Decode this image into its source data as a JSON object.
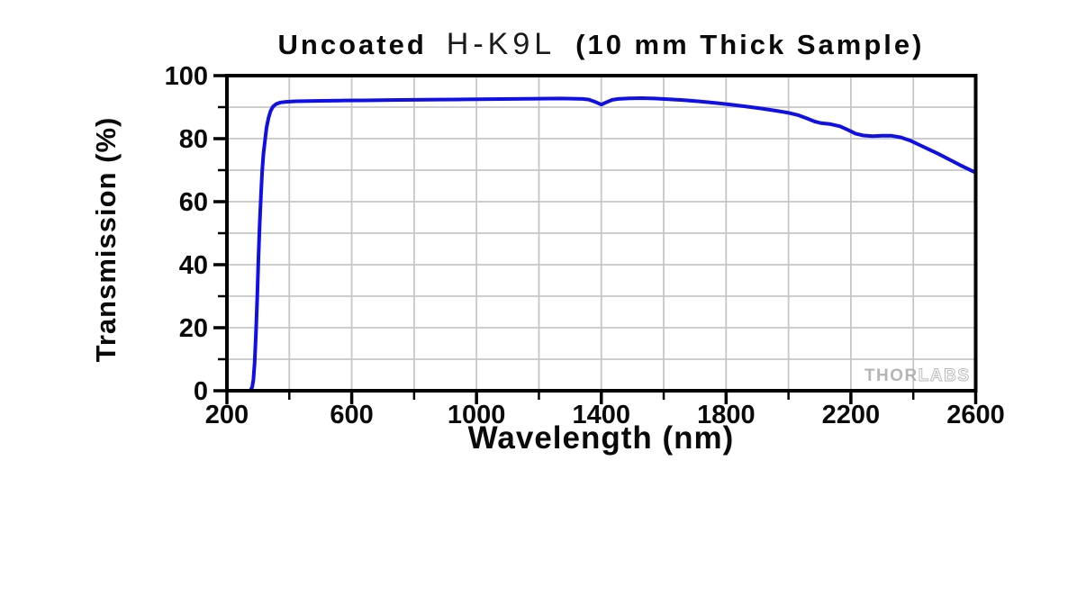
{
  "figure": {
    "title": {
      "prefix": "Uncoated",
      "glass": "H-K9L",
      "suffix": "(10 mm Thick Sample)"
    },
    "watermark": {
      "part1": "THOR",
      "part2": "LABS"
    }
  },
  "chart_data": {
    "type": "line",
    "title": "Uncoated H-K9L (10 mm Thick Sample)",
    "xlabel": "Wavelength (nm)",
    "ylabel": "Transmission (%)",
    "xlim": [
      200,
      2600
    ],
    "ylim": [
      0,
      100
    ],
    "x_major_ticks": [
      200,
      600,
      1000,
      1400,
      1800,
      2200,
      2600
    ],
    "x_minor_ticks": [
      400,
      800,
      1200,
      1600,
      2000,
      2400
    ],
    "y_major_ticks": [
      0,
      20,
      40,
      60,
      80,
      100
    ],
    "y_minor_ticks": [
      10,
      30,
      50,
      70,
      90
    ],
    "grid": {
      "visible": true,
      "x_values": [
        400,
        600,
        800,
        1000,
        1200,
        1400,
        1600,
        1800,
        2000,
        2200,
        2400
      ],
      "y_values": [
        10,
        20,
        30,
        40,
        50,
        60,
        70,
        80,
        90
      ]
    },
    "legend": "none",
    "colors": {
      "axis": "#000000",
      "grid": "#c6c6c6",
      "watermark": "#b5b5b5",
      "background": "#ffffff"
    },
    "series": [
      {
        "name": "Transmission",
        "color": "#0f0fe6",
        "points": [
          [
            200,
            0
          ],
          [
            250,
            0
          ],
          [
            268,
            0
          ],
          [
            276,
            0.2
          ],
          [
            281,
            1.2
          ],
          [
            285,
            3.5
          ],
          [
            289,
            9
          ],
          [
            293,
            18
          ],
          [
            297,
            29
          ],
          [
            301,
            42
          ],
          [
            305,
            53
          ],
          [
            309,
            62
          ],
          [
            313,
            69.5
          ],
          [
            317,
            75
          ],
          [
            322,
            79.5
          ],
          [
            327,
            83.5
          ],
          [
            333,
            86.5
          ],
          [
            340,
            88.8
          ],
          [
            348,
            90.2
          ],
          [
            358,
            91
          ],
          [
            372,
            91.5
          ],
          [
            390,
            91.7
          ],
          [
            420,
            91.85
          ],
          [
            460,
            91.95
          ],
          [
            500,
            92
          ],
          [
            560,
            92.1
          ],
          [
            640,
            92.15
          ],
          [
            720,
            92.25
          ],
          [
            800,
            92.3
          ],
          [
            880,
            92.4
          ],
          [
            960,
            92.45
          ],
          [
            1040,
            92.55
          ],
          [
            1120,
            92.6
          ],
          [
            1200,
            92.7
          ],
          [
            1270,
            92.75
          ],
          [
            1340,
            92.6
          ],
          [
            1360,
            92.4
          ],
          [
            1380,
            91.7
          ],
          [
            1400,
            90.8
          ],
          [
            1415,
            91.5
          ],
          [
            1435,
            92.3
          ],
          [
            1455,
            92.6
          ],
          [
            1490,
            92.8
          ],
          [
            1530,
            92.85
          ],
          [
            1570,
            92.75
          ],
          [
            1610,
            92.55
          ],
          [
            1660,
            92.25
          ],
          [
            1710,
            91.85
          ],
          [
            1760,
            91.4
          ],
          [
            1810,
            90.85
          ],
          [
            1860,
            90.25
          ],
          [
            1910,
            89.6
          ],
          [
            1960,
            88.85
          ],
          [
            2000,
            88.2
          ],
          [
            2030,
            87.5
          ],
          [
            2060,
            86.4
          ],
          [
            2085,
            85.4
          ],
          [
            2105,
            84.9
          ],
          [
            2135,
            84.6
          ],
          [
            2165,
            83.9
          ],
          [
            2190,
            82.8
          ],
          [
            2215,
            81.6
          ],
          [
            2240,
            81
          ],
          [
            2270,
            80.8
          ],
          [
            2300,
            80.9
          ],
          [
            2330,
            80.9
          ],
          [
            2360,
            80.4
          ],
          [
            2390,
            79.4
          ],
          [
            2420,
            78
          ],
          [
            2450,
            76.6
          ],
          [
            2480,
            75.2
          ],
          [
            2515,
            73.4
          ],
          [
            2550,
            71.6
          ],
          [
            2575,
            70.4
          ],
          [
            2600,
            69.2
          ]
        ]
      }
    ]
  }
}
